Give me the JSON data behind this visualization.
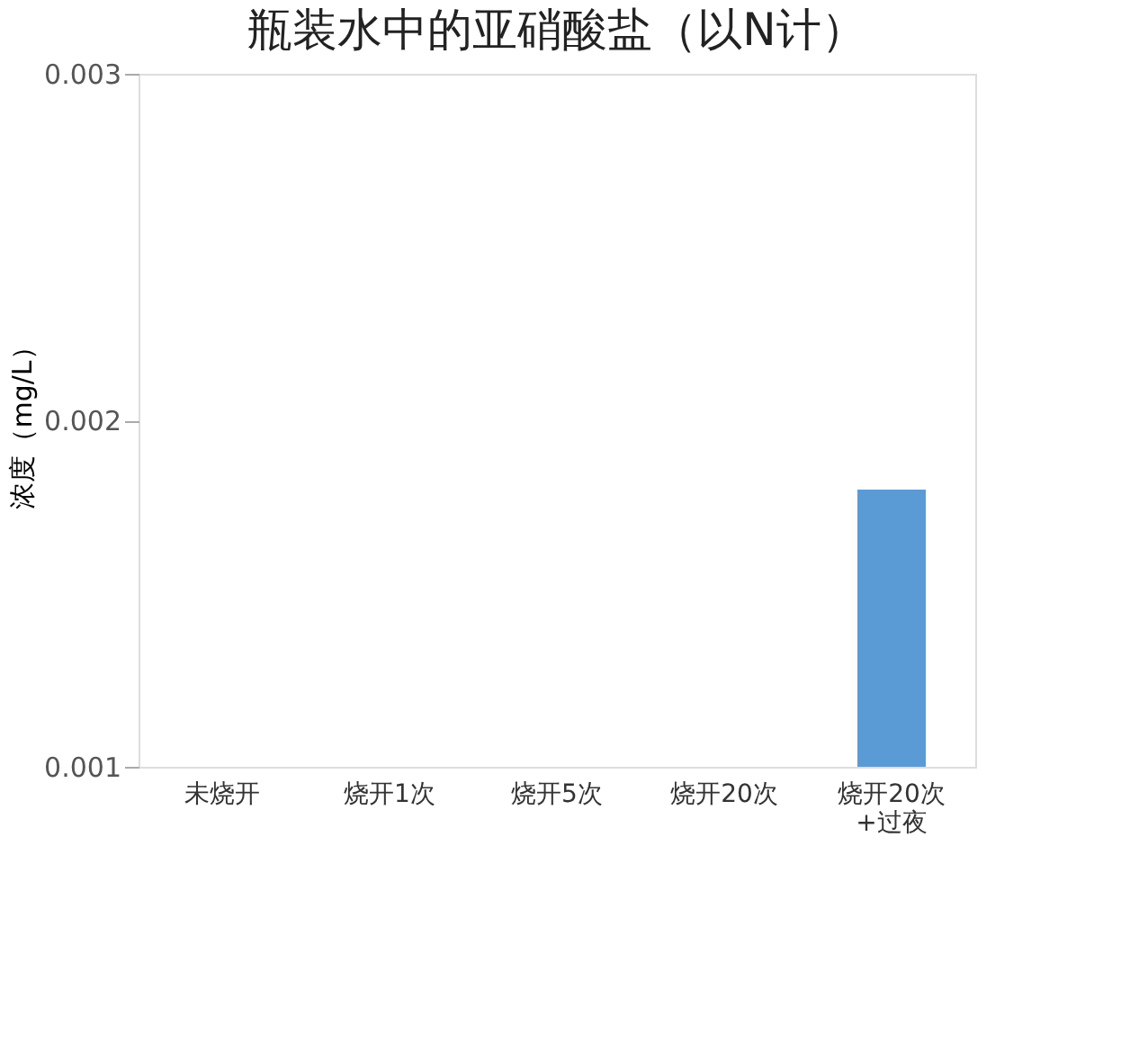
{
  "chart_data": {
    "type": "bar",
    "title": "瓶装水中的亚硝酸盐（以N计）",
    "ylabel": "浓度（mg/L）",
    "categories": [
      "未烧开",
      "烧开1次",
      "烧开5次",
      "烧开20次",
      "烧开20次+过夜"
    ],
    "values": [
      null,
      null,
      null,
      null,
      0.0018
    ],
    "color": "#5b9bd5",
    "ylim": [
      0.001,
      0.003
    ],
    "yticks": [
      0.001,
      0.002,
      0.003
    ],
    "grid": false
  }
}
